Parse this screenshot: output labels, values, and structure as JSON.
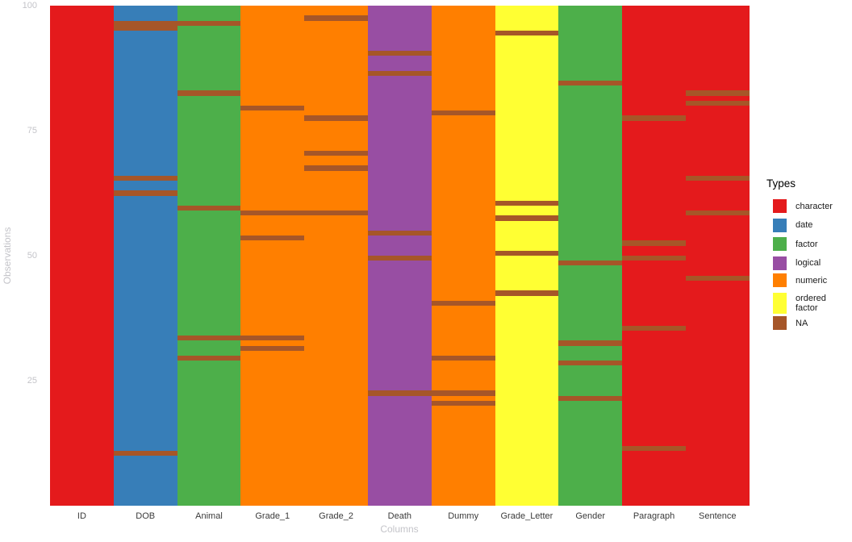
{
  "chart_data": {
    "type": "heatmap",
    "title": "",
    "xlabel": "Columns",
    "ylabel": "Observations",
    "x_categories": [
      "ID",
      "DOB",
      "Animal",
      "Grade_1",
      "Grade_2",
      "Death",
      "Dummy",
      "Grade_Letter",
      "Gender",
      "Paragraph",
      "Sentence"
    ],
    "y_ticks": [
      25,
      50,
      75,
      100
    ],
    "y_range": [
      0.5,
      100.5
    ],
    "n_observations": 100,
    "grid": false,
    "legend": {
      "title": "Types",
      "position": "right",
      "entries": [
        {
          "label": "character",
          "color": "#E41A1C"
        },
        {
          "label": "date",
          "color": "#377EB8"
        },
        {
          "label": "factor",
          "color": "#4DAF4A"
        },
        {
          "label": "logical",
          "color": "#984EA3"
        },
        {
          "label": "numeric",
          "color": "#FF7F00"
        },
        {
          "label": "ordered factor",
          "color": "#FFFF33"
        },
        {
          "label": "NA",
          "color": "#A65628"
        }
      ]
    },
    "type_colors": {
      "character": "#E41A1C",
      "date": "#377EB8",
      "factor": "#4DAF4A",
      "logical": "#984EA3",
      "numeric": "#FF7F00",
      "ordered factor": "#FFFF33",
      "NA": "#A65628"
    },
    "columns": [
      {
        "name": "ID",
        "type": "character",
        "na_rows": []
      },
      {
        "name": "DOB",
        "type": "date",
        "na_rows": [
          97,
          96,
          66,
          63,
          11
        ]
      },
      {
        "name": "Animal",
        "type": "factor",
        "na_rows": [
          97,
          83,
          60,
          34,
          30
        ]
      },
      {
        "name": "Grade_1",
        "type": "numeric",
        "na_rows": [
          80,
          59,
          54,
          34,
          32
        ]
      },
      {
        "name": "Grade_2",
        "type": "numeric",
        "na_rows": [
          98,
          78,
          71,
          68,
          59
        ]
      },
      {
        "name": "Death",
        "type": "logical",
        "na_rows": [
          91,
          87,
          55,
          50,
          23
        ]
      },
      {
        "name": "Dummy",
        "type": "numeric",
        "na_rows": [
          79,
          41,
          30,
          23,
          21
        ]
      },
      {
        "name": "Grade_Letter",
        "type": "ordered factor",
        "na_rows": [
          95,
          61,
          58,
          51,
          43
        ]
      },
      {
        "name": "Gender",
        "type": "factor",
        "na_rows": [
          85,
          49,
          33,
          29,
          22
        ]
      },
      {
        "name": "Paragraph",
        "type": "character",
        "na_rows": [
          78,
          53,
          50,
          36,
          12
        ]
      },
      {
        "name": "Sentence",
        "type": "character",
        "na_rows": [
          83,
          81,
          66,
          59,
          46
        ]
      }
    ]
  }
}
